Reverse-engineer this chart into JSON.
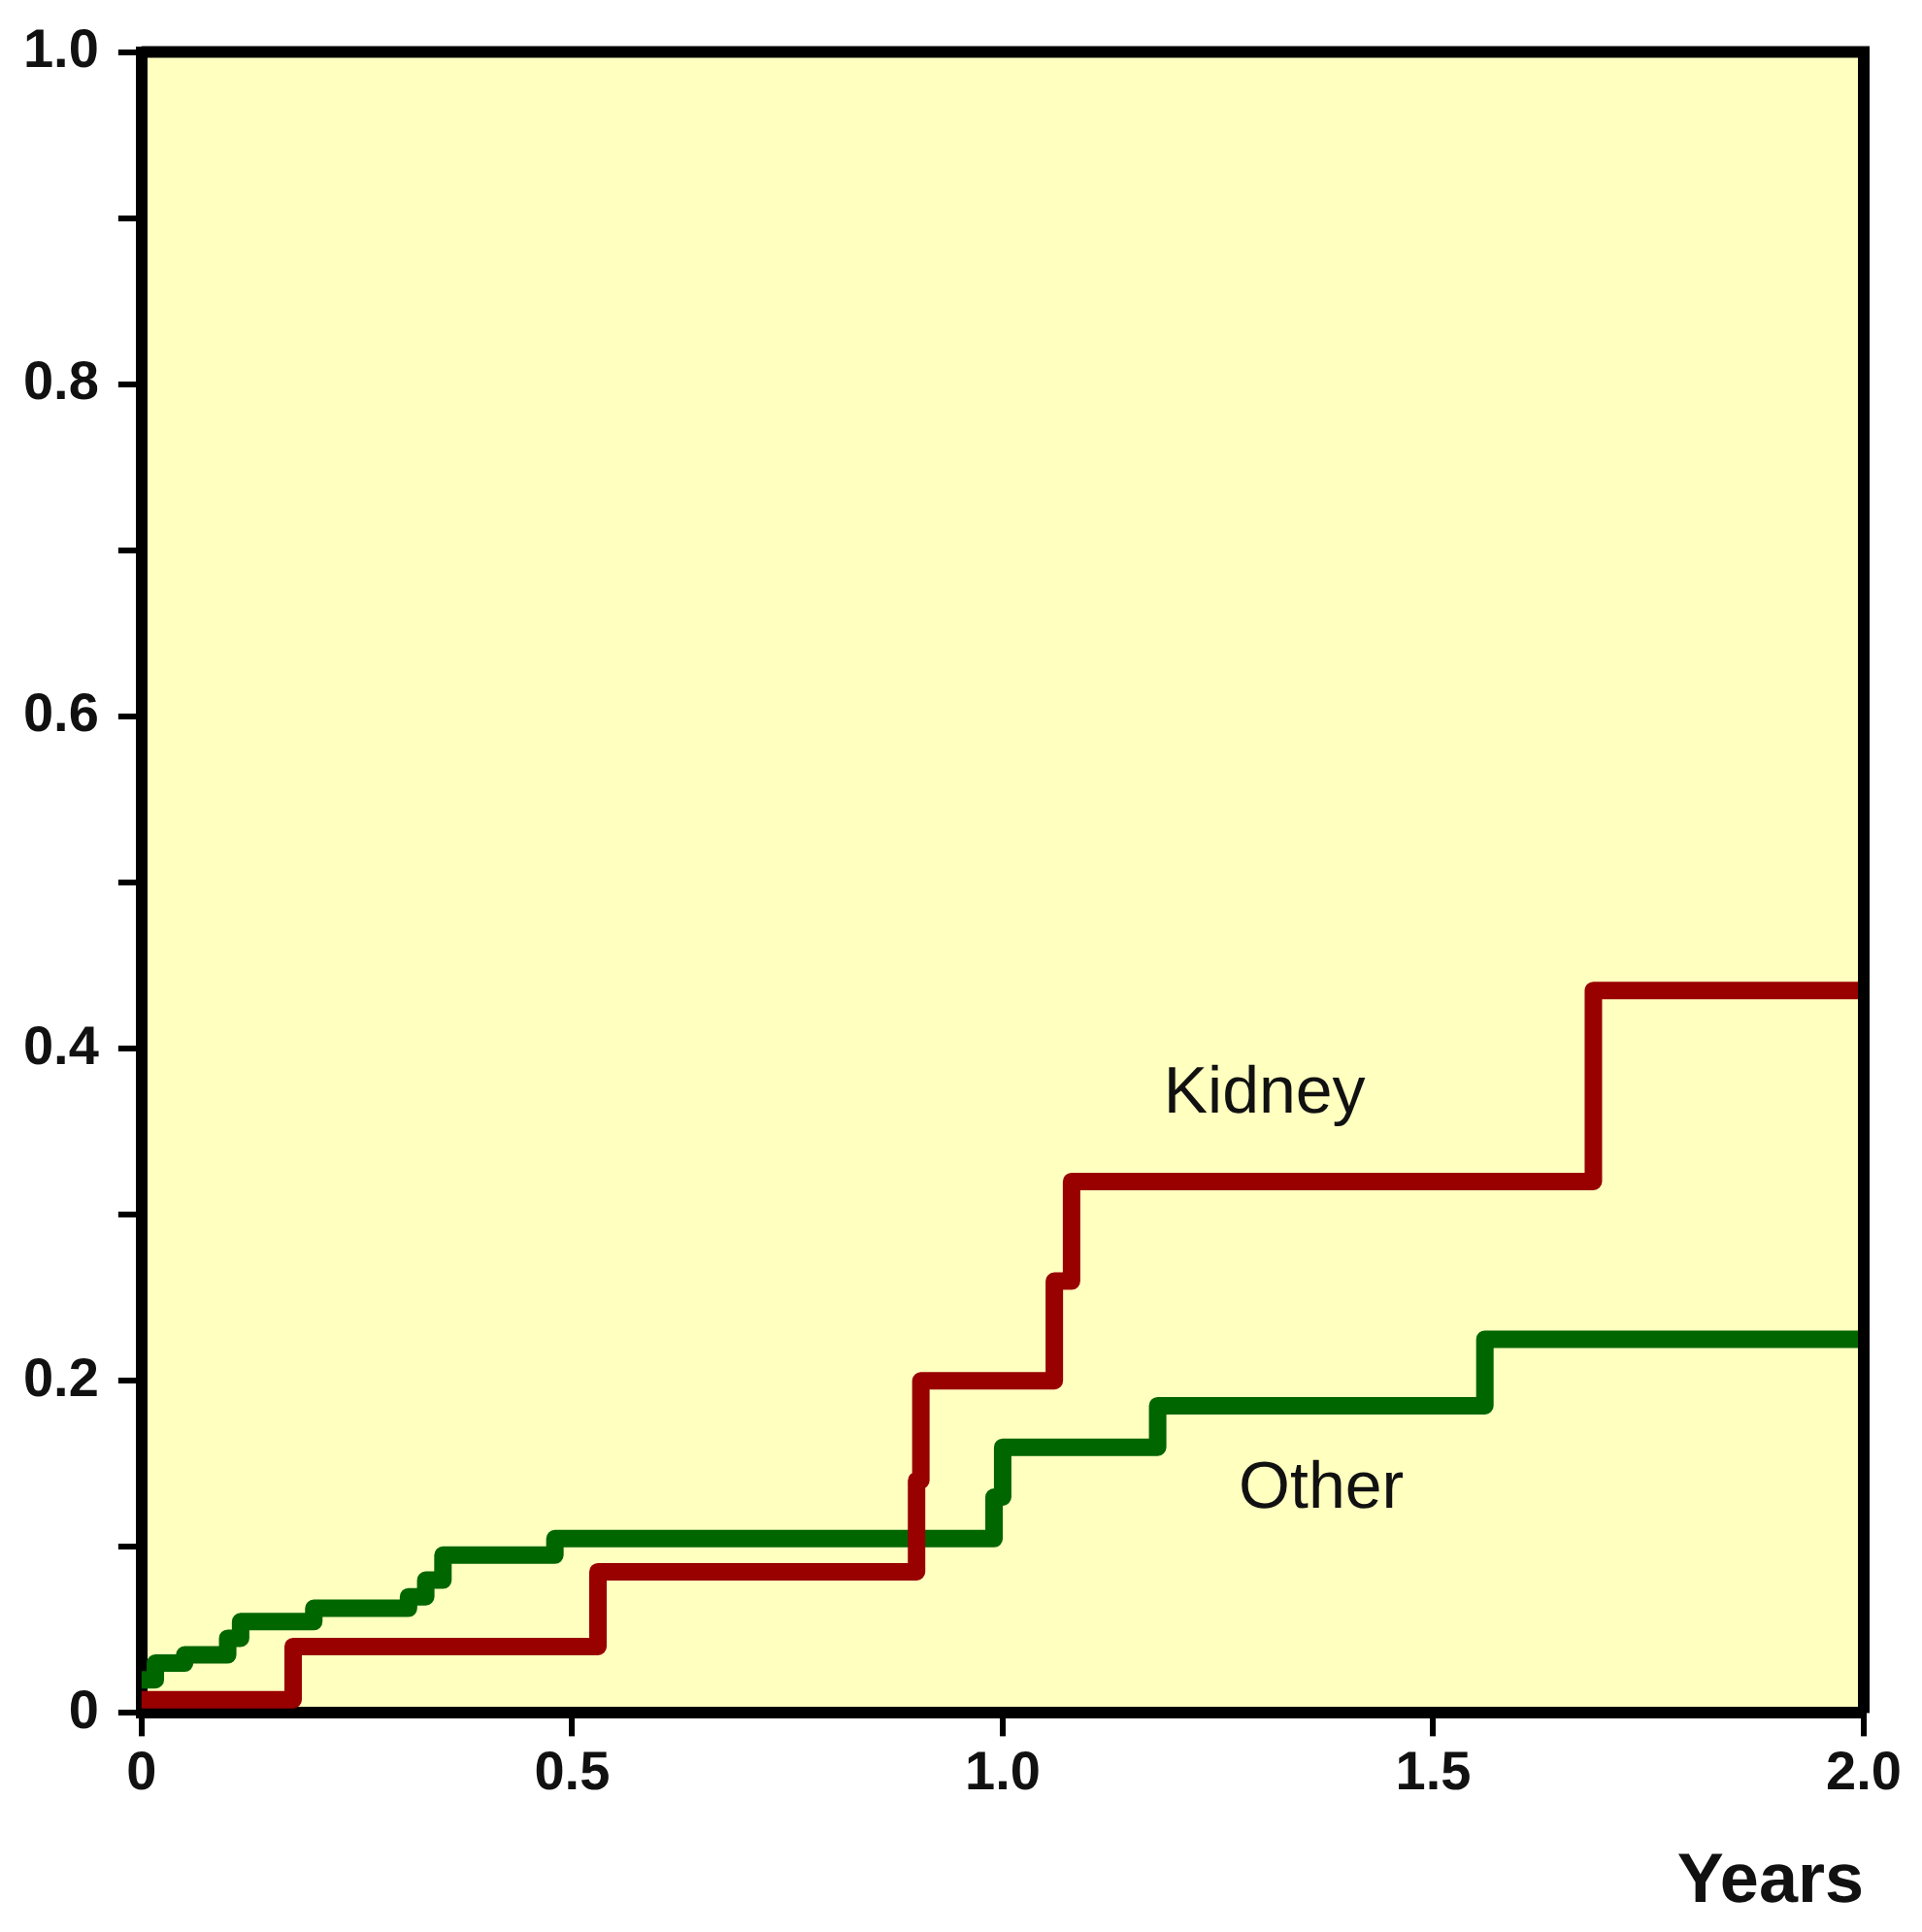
{
  "chart_data": {
    "type": "step",
    "xlabel": "Years",
    "xlim": [
      0,
      2
    ],
    "xticks": [
      0,
      0.5,
      {
        "value": 1,
        "label": "1.0"
      },
      1.5,
      {
        "value": 2,
        "label": "2.0"
      }
    ],
    "ylim": [
      0,
      1
    ],
    "yticks": [
      0,
      {
        "value": 0.1,
        "label": null
      },
      {
        "value": 0.2,
        "label": "0.2"
      },
      {
        "value": 0.3,
        "label": null
      },
      {
        "value": 0.4,
        "label": "0.4"
      },
      {
        "value": 0.5,
        "label": null
      },
      {
        "value": 0.6,
        "label": "0.6"
      },
      {
        "value": 0.7,
        "label": null
      },
      {
        "value": 0.8,
        "label": "0.8"
      },
      {
        "value": 0.9,
        "label": null
      },
      {
        "value": 1,
        "label": "1.0"
      }
    ],
    "grid": false,
    "legend": false,
    "series": [
      {
        "name": "Kidney",
        "color": "#990000",
        "x": [
          0,
          0.176,
          0.53,
          0.9,
          0.905,
          1.06,
          1.08,
          1.686,
          2
        ],
        "values": [
          0.008,
          0.04,
          0.085,
          0.14,
          0.2,
          0.26,
          0.32,
          0.435,
          0.435
        ]
      },
      {
        "name": "Other",
        "color": "#006600",
        "x": [
          0,
          0.016,
          0.05,
          0.1,
          0.115,
          0.2,
          0.31,
          0.33,
          0.35,
          0.48,
          0.99,
          1.0,
          1.18,
          1.56,
          2
        ],
        "values": [
          0.02,
          0.03,
          0.035,
          0.045,
          0.055,
          0.063,
          0.07,
          0.08,
          0.095,
          0.105,
          0.13,
          0.16,
          0.185,
          0.225,
          0.225
        ]
      }
    ]
  }
}
